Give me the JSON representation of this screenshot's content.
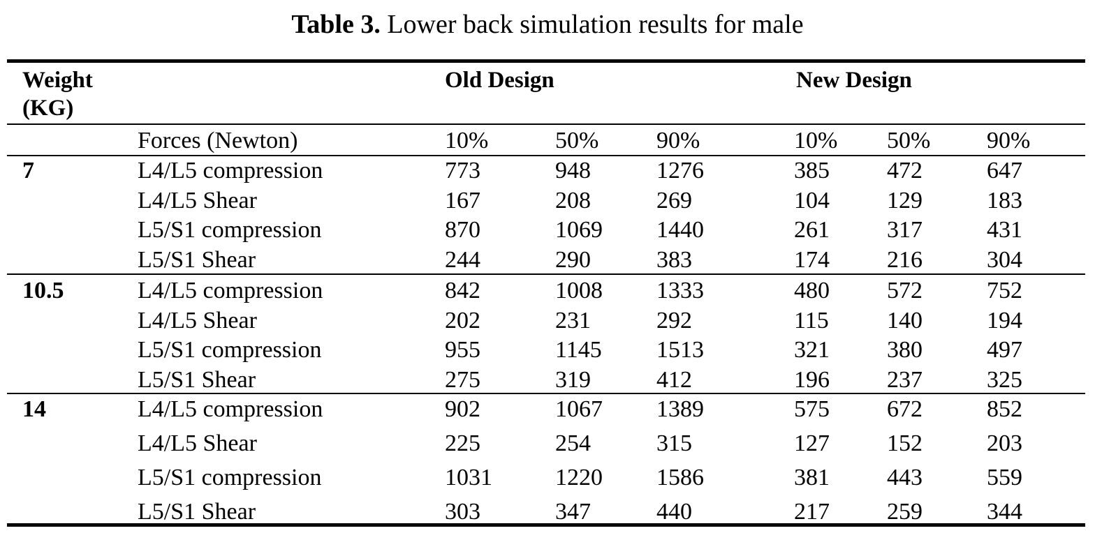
{
  "caption": {
    "number": "Table 3.",
    "text": "Lower back simulation results for male"
  },
  "header": {
    "weight_line1": "Weight",
    "weight_line2": "(KG)",
    "old_design": "Old Design",
    "new_design": "New Design",
    "forces_label": "Forces (Newton)",
    "percentiles": [
      "10%",
      "50%",
      "90%",
      "10%",
      "50%",
      "90%"
    ]
  },
  "groups": [
    {
      "weight": "7",
      "rows": [
        {
          "force": "L4/L5 compression",
          "values": [
            "773",
            "948",
            "1276",
            "385",
            "472",
            "647"
          ]
        },
        {
          "force": "L4/L5 Shear",
          "values": [
            "167",
            "208",
            "269",
            "104",
            "129",
            "183"
          ]
        },
        {
          "force": "L5/S1 compression",
          "values": [
            "870",
            "1069",
            "1440",
            "261",
            "317",
            "431"
          ]
        },
        {
          "force": "L5/S1 Shear",
          "values": [
            "244",
            "290",
            "383",
            "174",
            "216",
            "304"
          ]
        }
      ]
    },
    {
      "weight": "10.5",
      "rows": [
        {
          "force": "L4/L5 compression",
          "values": [
            "842",
            "1008",
            "1333",
            "480",
            "572",
            "752"
          ]
        },
        {
          "force": "L4/L5 Shear",
          "values": [
            "202",
            "231",
            "292",
            "115",
            "140",
            "194"
          ]
        },
        {
          "force": "L5/S1 compression",
          "values": [
            "955",
            "1145",
            "1513",
            "321",
            "380",
            "497"
          ]
        },
        {
          "force": "L5/S1 Shear",
          "values": [
            "275",
            "319",
            "412",
            "196",
            "237",
            "325"
          ]
        }
      ]
    },
    {
      "weight": "14",
      "rows": [
        {
          "force": "L4/L5 compression",
          "values": [
            "902",
            "1067",
            "1389",
            "575",
            "672",
            "852"
          ]
        },
        {
          "force": "L4/L5 Shear",
          "values": [
            "225",
            "254",
            "315",
            "127",
            "152",
            "203"
          ]
        },
        {
          "force": "L5/S1 compression",
          "values": [
            "1031",
            "1220",
            "1586",
            "381",
            "443",
            "559"
          ]
        },
        {
          "force": "L5/S1 Shear",
          "values": [
            "303",
            "347",
            "440",
            "217",
            "259",
            "344"
          ]
        }
      ]
    }
  ]
}
